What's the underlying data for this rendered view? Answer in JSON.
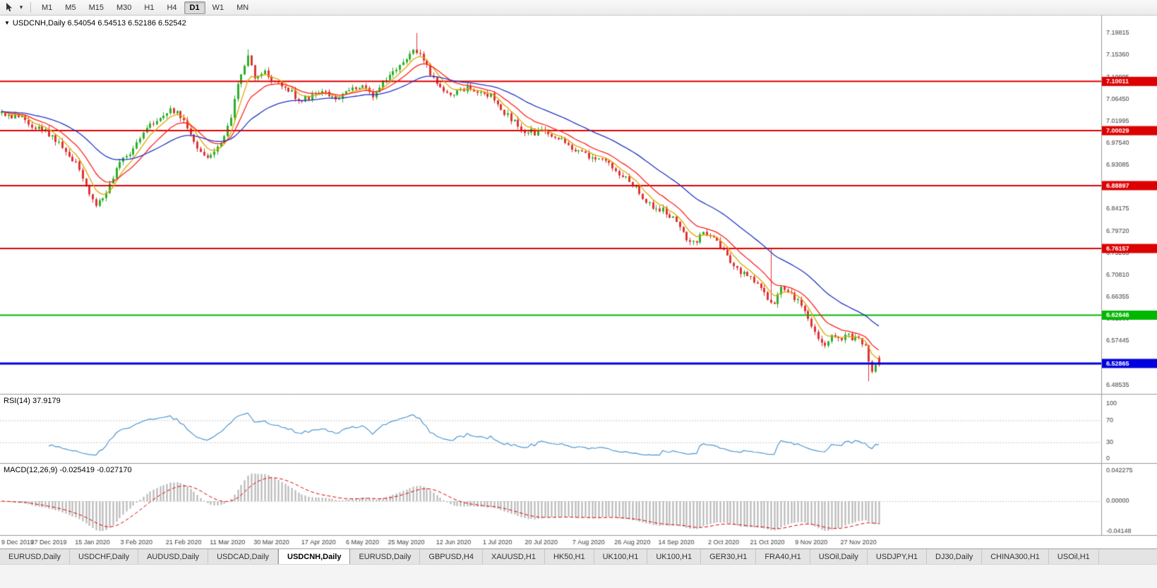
{
  "toolbar": {
    "dropdown_glyph": "▾",
    "timeframes": [
      {
        "label": "M1",
        "active": false
      },
      {
        "label": "M5",
        "active": false
      },
      {
        "label": "M15",
        "active": false
      },
      {
        "label": "M30",
        "active": false
      },
      {
        "label": "H1",
        "active": false
      },
      {
        "label": "H4",
        "active": false
      },
      {
        "label": "D1",
        "active": true
      },
      {
        "label": "W1",
        "active": false
      },
      {
        "label": "MN",
        "active": false
      }
    ]
  },
  "chart_header": {
    "icon_glyph": "▼",
    "text": "USDCNH,Daily 6.54054 6.54513 6.52186 6.52542"
  },
  "tabs": {
    "items": [
      {
        "label": "EURUSD,Daily",
        "active": false
      },
      {
        "label": "USDCHF,Daily",
        "active": false
      },
      {
        "label": "AUDUSD,Daily",
        "active": false
      },
      {
        "label": "USDCAD,Daily",
        "active": false
      },
      {
        "label": "USDCNH,Daily",
        "active": true
      },
      {
        "label": "EURUSD,Daily",
        "active": false
      },
      {
        "label": "GBPUSD,H4",
        "active": false
      },
      {
        "label": "XAUUSD,H1",
        "active": false
      },
      {
        "label": "HK50,H1",
        "active": false
      },
      {
        "label": "UK100,H1",
        "active": false
      },
      {
        "label": "UK100,H1",
        "active": false
      },
      {
        "label": "GER30,H1",
        "active": false
      },
      {
        "label": "FRA40,H1",
        "active": false
      },
      {
        "label": "USOil,Daily",
        "active": false
      },
      {
        "label": "USDJPY,H1",
        "active": false
      },
      {
        "label": "DJ30,Daily",
        "active": false
      },
      {
        "label": "CHINA300,H1",
        "active": false
      },
      {
        "label": "USOil,H1",
        "active": false
      }
    ]
  },
  "chart_data": {
    "type": "candlestick",
    "symbol": "USDCNH",
    "timeframe": "Daily",
    "ohlc": {
      "open": 6.54054,
      "high": 6.54513,
      "low": 6.52186,
      "close": 6.52542
    },
    "colors": {
      "up": "#2aaf2a",
      "down": "#e03232",
      "axis_text": "#3c3c3c",
      "grid": "#c9c9c9",
      "separator": "#9a9a9a"
    },
    "price_range": {
      "min": 6.467,
      "max": 7.225
    },
    "y_ticks": [
      7.19815,
      7.1536,
      7.10905,
      7.0645,
      7.01995,
      6.9754,
      6.93085,
      6.84175,
      6.7972,
      6.75265,
      6.7081,
      6.66355,
      6.619,
      6.57445,
      6.48535
    ],
    "hlines": [
      {
        "price": 7.10011,
        "label": "7.10011",
        "color": "#dd0000",
        "lw": 2
      },
      {
        "price": 7.00029,
        "label": "7.00029",
        "color": "#dd0000",
        "lw": 2
      },
      {
        "price": 6.88897,
        "label": "6.88897",
        "color": "#dd0000",
        "lw": 2
      },
      {
        "price": 6.76157,
        "label": "6.76157",
        "color": "#dd0000",
        "lw": 2
      },
      {
        "price": 6.62646,
        "label": "6.62646",
        "color": "#00b800",
        "lw": 2
      },
      {
        "price": 6.52865,
        "label": "6.52865",
        "color": "#0000dd",
        "lw": 3
      }
    ],
    "moving_averages": [
      {
        "period": 6,
        "color": "#e0a400"
      },
      {
        "period": 13,
        "color": "#ff2020"
      },
      {
        "period": 34,
        "color": "#2334c4"
      }
    ],
    "days": 261,
    "x_labels": [
      "9 Dec 2019",
      "27 Dec 2019",
      "15 Jan 2020",
      "3 Feb 2020",
      "21 Feb 2020",
      "11 Mar 2020",
      "30 Mar 2020",
      "17 Apr 2020",
      "6 May 2020",
      "25 May 2020",
      "12 Jun 2020",
      "1 Jul 2020",
      "20 Jul 2020",
      "7 Aug 2020",
      "26 Aug 2020",
      "14 Sep 2020",
      "2 Oct 2020",
      "21 Oct 2020",
      "9 Nov 2020",
      "27 Nov 2020"
    ],
    "x_label_days": [
      0,
      14,
      27,
      40,
      54,
      67,
      80,
      94,
      107,
      120,
      134,
      147,
      160,
      174,
      187,
      200,
      214,
      227,
      240,
      254
    ],
    "price_path": [
      [
        0,
        7.035
      ],
      [
        6,
        7.025
      ],
      [
        10,
        7.005
      ],
      [
        14,
        6.995
      ],
      [
        18,
        6.965
      ],
      [
        22,
        6.935
      ],
      [
        26,
        6.875
      ],
      [
        28,
        6.852
      ],
      [
        31,
        6.878
      ],
      [
        35,
        6.935
      ],
      [
        38,
        6.955
      ],
      [
        40,
        6.975
      ],
      [
        43,
        7.005
      ],
      [
        46,
        7.02
      ],
      [
        50,
        7.045
      ],
      [
        53,
        7.03
      ],
      [
        56,
        6.995
      ],
      [
        60,
        6.945
      ],
      [
        63,
        6.962
      ],
      [
        66,
        6.99
      ],
      [
        68,
        7.03
      ],
      [
        70,
        7.09
      ],
      [
        73,
        7.155
      ],
      [
        75,
        7.1
      ],
      [
        78,
        7.122
      ],
      [
        80,
        7.1
      ],
      [
        84,
        7.093
      ],
      [
        88,
        7.062
      ],
      [
        92,
        7.072
      ],
      [
        96,
        7.077
      ],
      [
        100,
        7.062
      ],
      [
        104,
        7.09
      ],
      [
        107,
        7.088
      ],
      [
        110,
        7.072
      ],
      [
        113,
        7.1
      ],
      [
        116,
        7.124
      ],
      [
        119,
        7.136
      ],
      [
        122,
        7.165
      ],
      [
        124,
        7.152
      ],
      [
        127,
        7.118
      ],
      [
        130,
        7.083
      ],
      [
        134,
        7.072
      ],
      [
        138,
        7.088
      ],
      [
        142,
        7.076
      ],
      [
        146,
        7.068
      ],
      [
        149,
        7.038
      ],
      [
        152,
        7.018
      ],
      [
        155,
        7.002
      ],
      [
        158,
        6.996
      ],
      [
        161,
        7.002
      ],
      [
        164,
        6.989
      ],
      [
        168,
        6.972
      ],
      [
        171,
        6.955
      ],
      [
        174,
        6.95
      ],
      [
        178,
        6.944
      ],
      [
        181,
        6.925
      ],
      [
        184,
        6.908
      ],
      [
        187,
        6.89
      ],
      [
        190,
        6.868
      ],
      [
        193,
        6.845
      ],
      [
        196,
        6.838
      ],
      [
        199,
        6.822
      ],
      [
        202,
        6.79
      ],
      [
        205,
        6.772
      ],
      [
        208,
        6.79
      ],
      [
        211,
        6.783
      ],
      [
        214,
        6.758
      ],
      [
        216,
        6.732
      ],
      [
        219,
        6.716
      ],
      [
        222,
        6.7
      ],
      [
        225,
        6.682
      ],
      [
        227,
        6.664
      ],
      [
        229,
        6.652
      ],
      [
        231,
        6.688
      ],
      [
        233,
        6.672
      ],
      [
        236,
        6.655
      ],
      [
        238,
        6.638
      ],
      [
        240,
        6.6
      ],
      [
        242,
        6.578
      ],
      [
        244,
        6.568
      ],
      [
        246,
        6.588
      ],
      [
        248,
        6.578
      ],
      [
        250,
        6.586
      ],
      [
        252,
        6.58
      ],
      [
        254,
        6.578
      ],
      [
        256,
        6.562
      ],
      [
        257,
        6.535
      ],
      [
        258,
        6.512
      ],
      [
        259,
        6.528
      ],
      [
        260,
        6.525
      ]
    ],
    "spikes": [
      {
        "day": 73,
        "high": 7.165
      },
      {
        "day": 123,
        "high": 7.19815
      },
      {
        "day": 228,
        "high": 6.7615
      },
      {
        "day": 257,
        "low": 6.4925
      }
    ],
    "rsi": {
      "label": "RSI(14) 37.9179",
      "period": 14,
      "current": 37.9179,
      "levels": [
        100,
        70,
        30,
        0
      ],
      "color": "#4d96d2"
    },
    "macd": {
      "label": "MACD(12,26,9) -0.025419 -0.027170",
      "fast": 12,
      "slow": 26,
      "signal": 9,
      "value": -0.025419,
      "signal_value": -0.02717,
      "axis_ticks": [
        {
          "value": 0.042275,
          "label": "0.042275"
        },
        {
          "value": 0,
          "label": "0.00000"
        },
        {
          "value": -0.04148,
          "label": "-0.04148"
        }
      ],
      "histogram_color": "#b4b4b4",
      "signal_color": "#e00000"
    }
  }
}
